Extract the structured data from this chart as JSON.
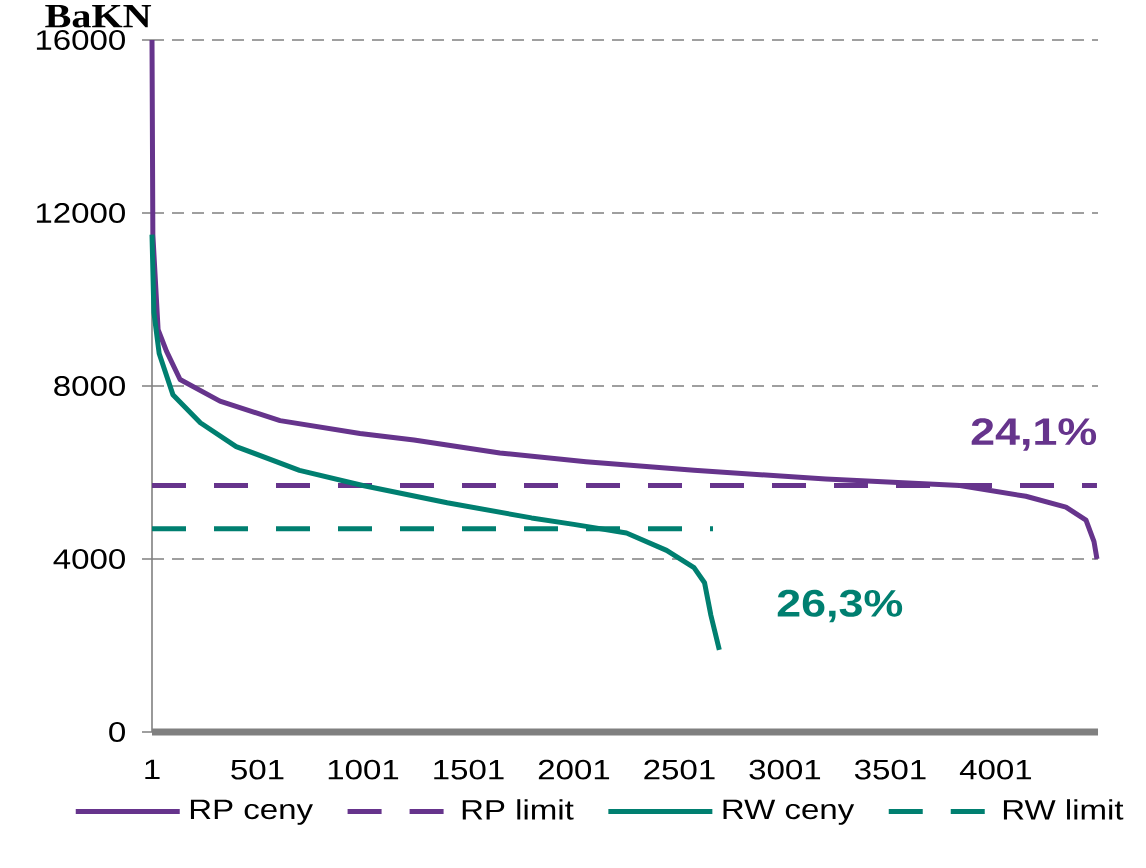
{
  "chart_data": {
    "type": "line",
    "ylabel": "BaKN",
    "xlim": [
      1,
      4485
    ],
    "xticks": [
      1,
      501,
      1001,
      1501,
      2001,
      2501,
      3001,
      3501,
      4001
    ],
    "ylim": [
      0,
      16000
    ],
    "yticks": [
      0,
      4000,
      8000,
      12000,
      16000
    ],
    "grid": "y",
    "legend": "bottom",
    "annotations": [
      "24,1%",
      "26,3%"
    ],
    "series": [
      {
        "name": "RP ceny",
        "color": "#66348c",
        "line_style": "solid",
        "x": [
          1,
          5,
          30,
          70,
          134,
          323,
          608,
          987,
          1243,
          1650,
          2058,
          2570,
          3195,
          3830,
          4143,
          4333,
          4428,
          4466,
          4480
        ],
        "values": [
          16000,
          11500,
          9300,
          8800,
          8150,
          7650,
          7200,
          6900,
          6750,
          6450,
          6250,
          6050,
          5850,
          5700,
          5450,
          5200,
          4900,
          4400,
          4000
        ]
      },
      {
        "name": "RP limit",
        "color": "#66348c",
        "line_style": "dashed",
        "x": [
          1,
          4480
        ],
        "values": [
          5700,
          5700
        ]
      },
      {
        "name": "RW ceny",
        "color": "#007f70",
        "line_style": "solid",
        "x": [
          1,
          10,
          35,
          100,
          230,
          400,
          700,
          1000,
          1400,
          1800,
          2000,
          2250,
          2440,
          2570,
          2620,
          2650,
          2690
        ],
        "values": [
          11500,
          9700,
          8750,
          7800,
          7150,
          6600,
          6050,
          5700,
          5300,
          4950,
          4800,
          4600,
          4200,
          3800,
          3450,
          2700,
          1900
        ]
      },
      {
        "name": "RW limit",
        "color": "#007f70",
        "line_style": "dashed",
        "x": [
          1,
          2660
        ],
        "values": [
          4700,
          4700
        ]
      }
    ]
  }
}
